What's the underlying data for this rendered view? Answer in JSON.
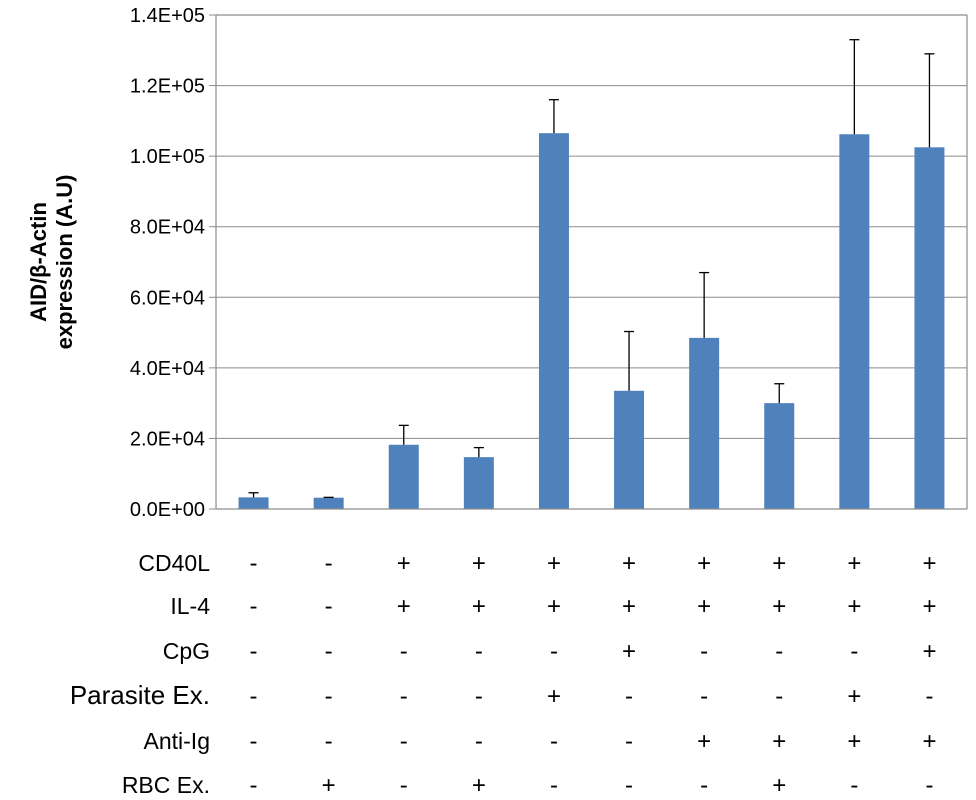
{
  "chart_data": {
    "type": "bar",
    "ylabel_lines": [
      "AID/β-Actin",
      "expression (A.U)"
    ],
    "ylim": [
      0,
      140000
    ],
    "yticks": [
      0,
      20000,
      40000,
      60000,
      80000,
      100000,
      120000,
      140000
    ],
    "ytick_labels": [
      "0.0E+00",
      "2.0E+04",
      "4.0E+04",
      "6.0E+04",
      "8.0E+04",
      "1.0E+05",
      "1.2E+05",
      "1.4E+05"
    ],
    "grid": true,
    "bar_color": "#4f81bd",
    "values": [
      3300,
      3200,
      18200,
      14700,
      106500,
      33500,
      48500,
      30000,
      106200,
      102500
    ],
    "error_upper": [
      4600,
      3300,
      23700,
      17400,
      116000,
      50300,
      67000,
      35500,
      133000,
      129000
    ],
    "conditions": [
      {
        "label": "CD40L",
        "signs": [
          "-",
          "-",
          "+",
          "+",
          "+",
          "+",
          "+",
          "+",
          "+",
          "+"
        ]
      },
      {
        "label": "IL-4",
        "signs": [
          "-",
          "-",
          "+",
          "+",
          "+",
          "+",
          "+",
          "+",
          "+",
          "+"
        ]
      },
      {
        "label": "CpG",
        "signs": [
          "-",
          "-",
          "-",
          "-",
          "-",
          "+",
          "-",
          "-",
          "-",
          "+"
        ]
      },
      {
        "label": "Parasite Ex.",
        "signs": [
          "-",
          "-",
          "-",
          "-",
          "+",
          "-",
          "-",
          "-",
          "+",
          "-"
        ]
      },
      {
        "label": "Anti-Ig",
        "signs": [
          "-",
          "-",
          "-",
          "-",
          "-",
          "-",
          "+",
          "+",
          "+",
          "+"
        ]
      },
      {
        "label": "RBC Ex.",
        "signs": [
          "-",
          "+",
          "-",
          "+",
          "-",
          "-",
          "-",
          "+",
          "-",
          "-"
        ]
      }
    ]
  }
}
